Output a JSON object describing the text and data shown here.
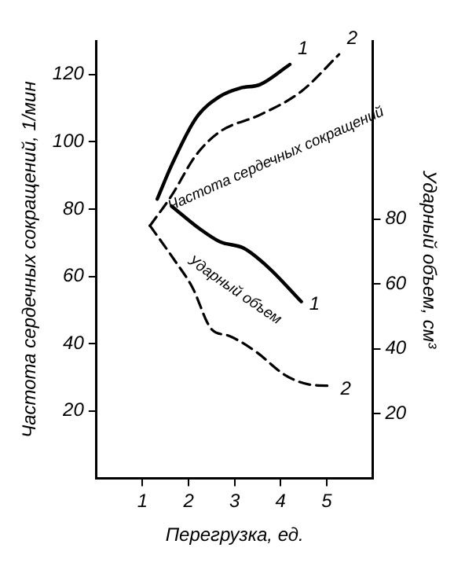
{
  "chart_data": {
    "type": "line",
    "xlabel": "Перегрузка, ед.",
    "ylabel": "Частота сердечных сокращений, 1/мин",
    "y2label": "Ударный объем, см³",
    "xlim": [
      0,
      6
    ],
    "xticks": [
      1,
      2,
      3,
      4,
      5
    ],
    "ylim": [
      0,
      130
    ],
    "yticks": [
      20,
      40,
      60,
      80,
      100,
      120
    ],
    "y2lim": [
      0,
      135
    ],
    "y2ticks": [
      20,
      40,
      60,
      80
    ],
    "grid": false,
    "legend": false,
    "marker": "none",
    "annotations": [
      "Частота сердечных сокращений",
      "Ударный объем"
    ],
    "series": [
      {
        "name": "1",
        "color": "#000000",
        "line_style": "solid",
        "x": [
          1.32,
          1.63,
          2.16,
          2.68,
          3.13,
          3.55,
          4.2
        ],
        "values": [
          83,
          93,
          107,
          113.5,
          116,
          117,
          123
        ]
      },
      {
        "name": "2",
        "color": "#000000",
        "line_style": "dashed",
        "x": [
          1.16,
          1.63,
          2.16,
          2.68,
          3.55,
          4.45,
          5.27
        ],
        "values": [
          75,
          84,
          96,
          103,
          108,
          115,
          126
        ]
      },
      {
        "name": "1",
        "color": "#000000",
        "line_style": "solid",
        "axis": "y2",
        "x": [
          1.63,
          2.24,
          2.68,
          3.2,
          3.74,
          4.45
        ],
        "values": [
          84,
          77,
          73,
          71,
          65,
          54.5
        ]
      },
      {
        "name": "2",
        "color": "#000000",
        "line_style": "dashed",
        "axis": "y2",
        "x": [
          1.16,
          1.71,
          2.08,
          2.5,
          2.87,
          3.47,
          4.08,
          4.6,
          5.13
        ],
        "values": [
          78,
          67,
          59,
          46,
          44,
          39,
          32,
          29,
          28.5
        ]
      }
    ]
  }
}
